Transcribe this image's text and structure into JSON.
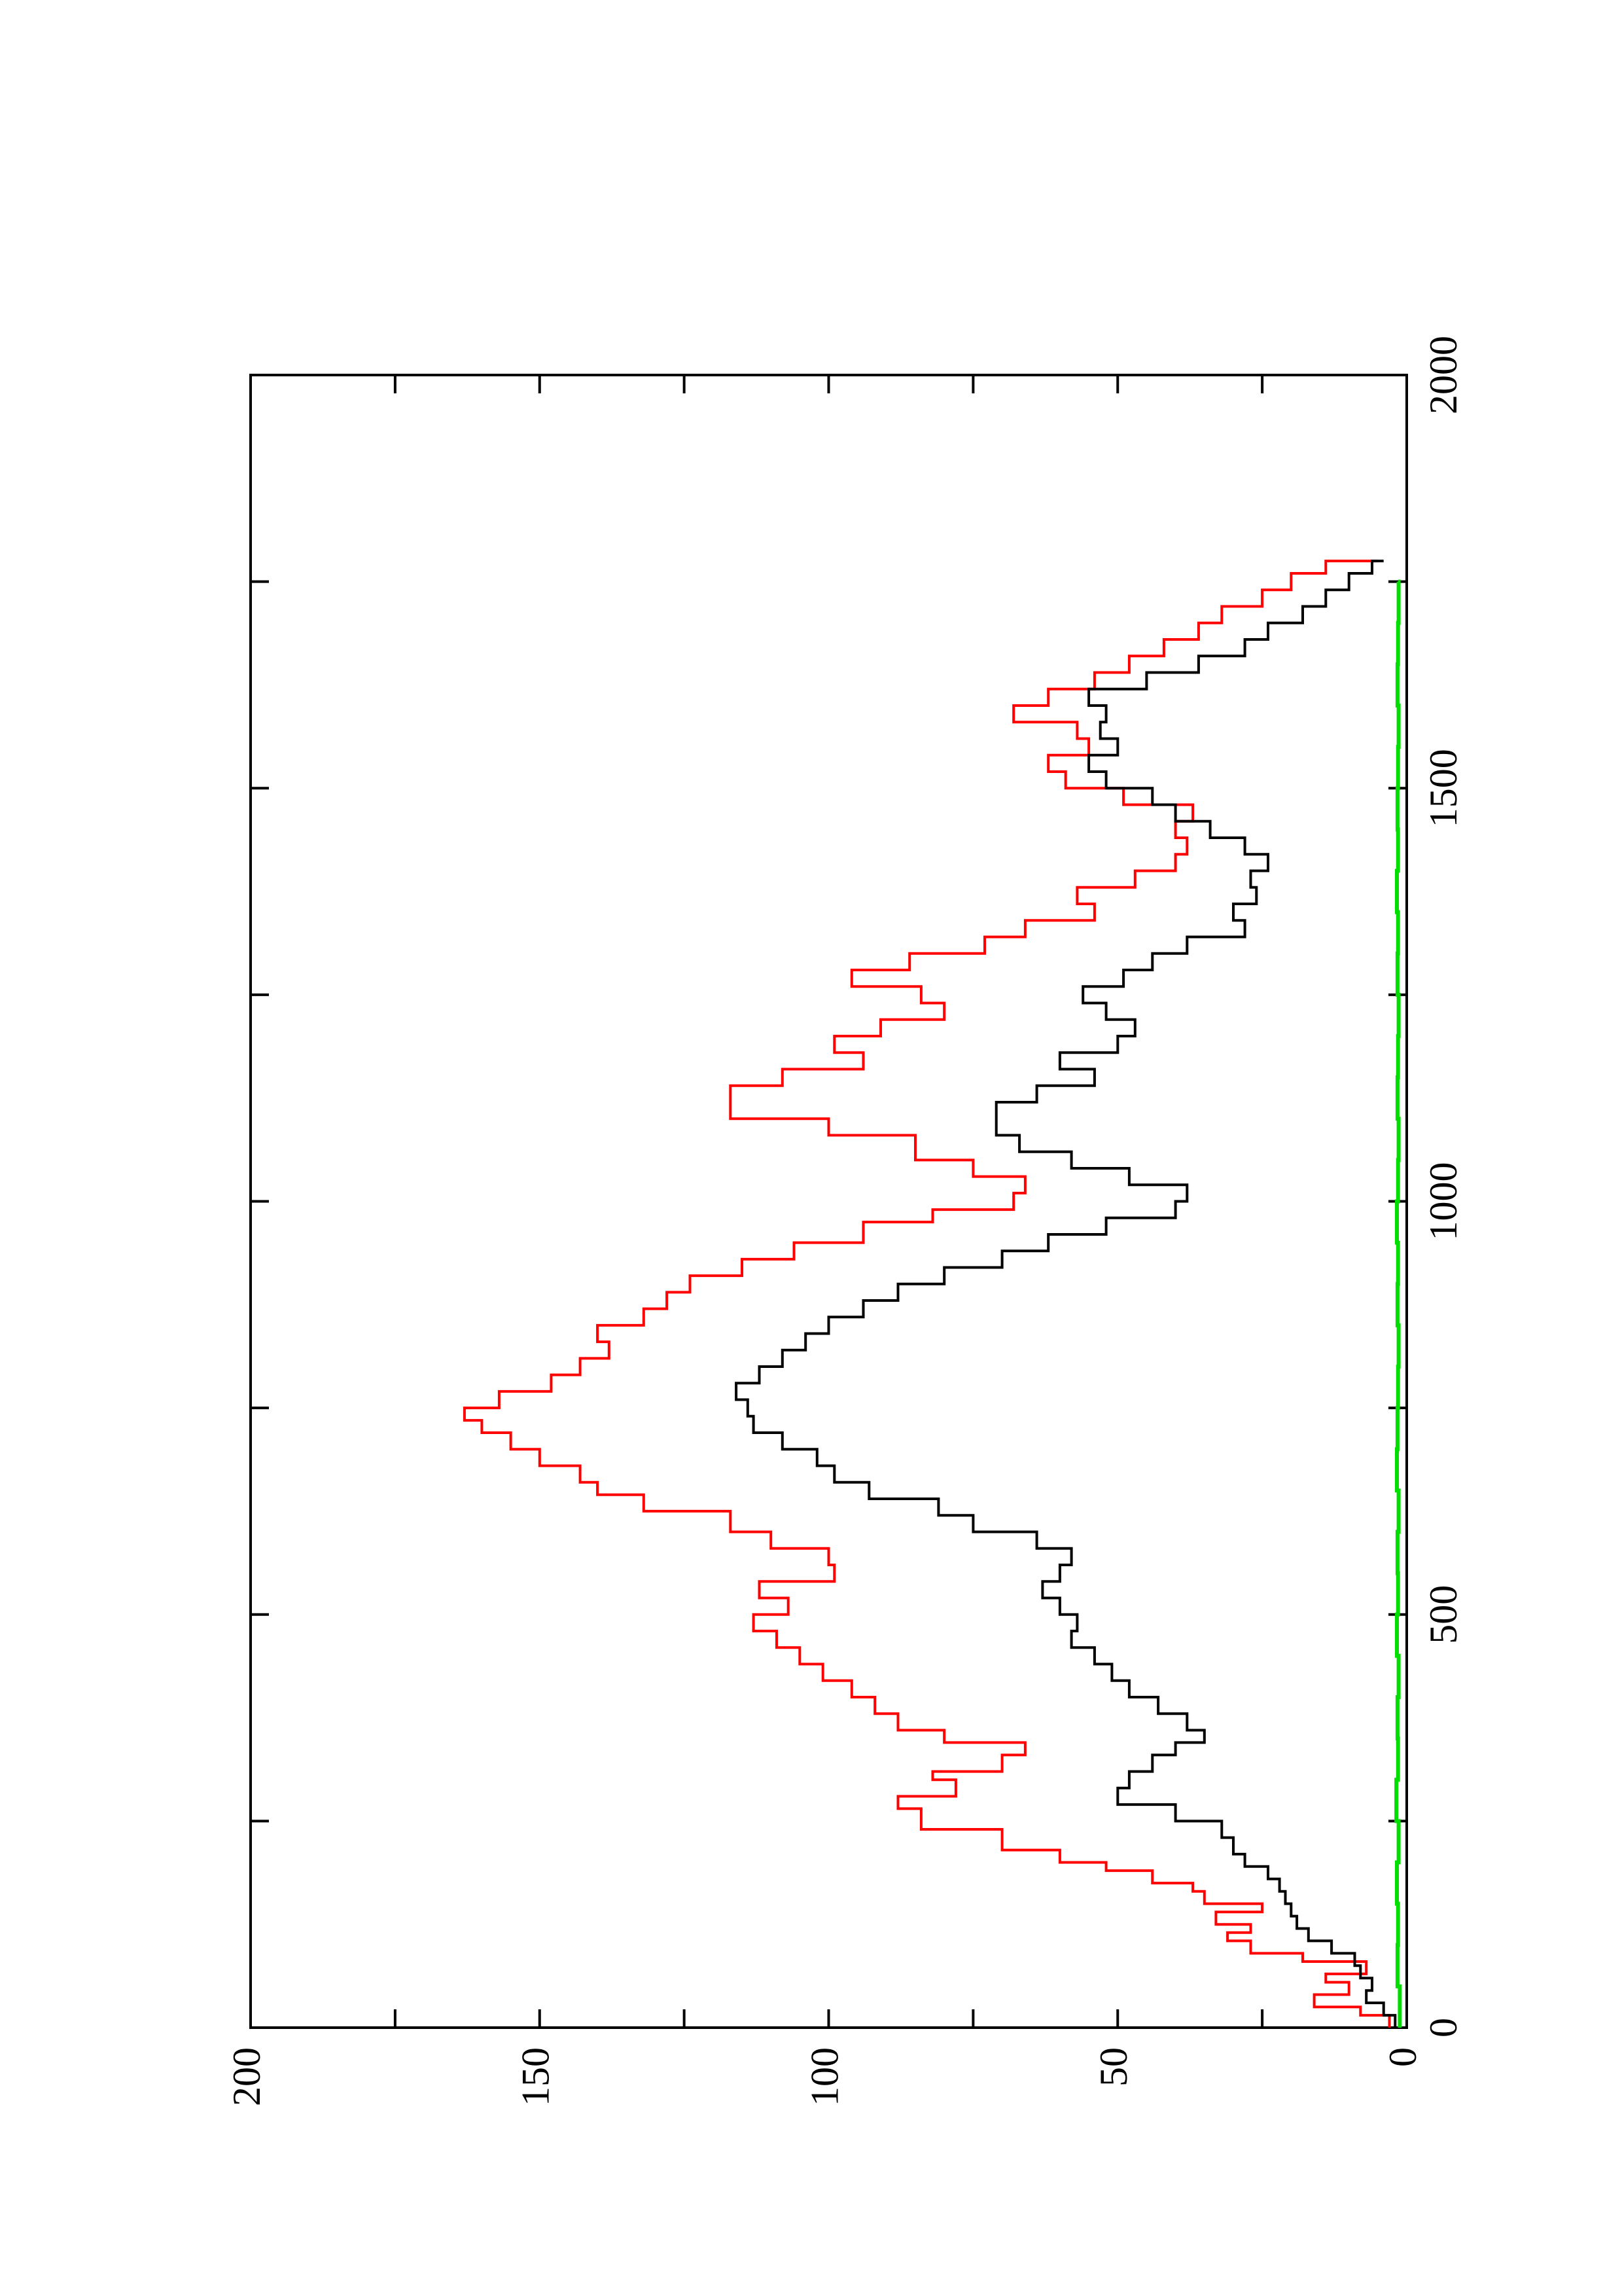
{
  "chart_data": {
    "type": "line",
    "orientation": "rotated-90-ccw",
    "title": "",
    "xlabel": "",
    "ylabel": "",
    "xlim": [
      0,
      2000
    ],
    "ylim": [
      0,
      200
    ],
    "grid": false,
    "legend": "none",
    "x_ticks": [
      {
        "value": 0,
        "label": "0"
      },
      {
        "value": 500,
        "label": "500"
      },
      {
        "value": 1000,
        "label": "1000"
      },
      {
        "value": 1500,
        "label": "1500"
      },
      {
        "value": 2000,
        "label": "2000"
      }
    ],
    "x_minor_ticks": [
      250,
      750,
      1250,
      1750
    ],
    "y_ticks": [
      {
        "value": 0,
        "label": "0"
      },
      {
        "value": 50,
        "label": "50"
      },
      {
        "value": 100,
        "label": "100"
      },
      {
        "value": 150,
        "label": "150"
      },
      {
        "value": 200,
        "label": "200"
      }
    ],
    "y_minor_ticks": [
      25,
      75,
      125,
      175
    ],
    "series": [
      {
        "color": "#ff0000",
        "x": [
          0,
          15,
          25,
          40,
          55,
          65,
          80,
          90,
          105,
          115,
          125,
          140,
          150,
          165,
          175,
          190,
          200,
          215,
          240,
          265,
          280,
          300,
          310,
          330,
          345,
          360,
          380,
          400,
          420,
          440,
          460,
          480,
          500,
          520,
          540,
          560,
          580,
          600,
          625,
          645,
          660,
          680,
          700,
          720,
          735,
          750,
          770,
          790,
          810,
          830,
          850,
          870,
          890,
          910,
          930,
          950,
          975,
          990,
          1010,
          1030,
          1050,
          1080,
          1100,
          1120,
          1140,
          1160,
          1180,
          1200,
          1220,
          1240,
          1260,
          1280,
          1300,
          1320,
          1340,
          1360,
          1380,
          1400,
          1420,
          1440,
          1460,
          1480,
          1500,
          1520,
          1540,
          1560,
          1580,
          1600,
          1620,
          1640,
          1660,
          1680,
          1700,
          1720,
          1740,
          1760,
          1775
        ],
        "values": [
          3,
          8,
          16,
          10,
          14,
          7,
          18,
          27,
          31,
          27,
          33,
          25,
          35,
          37,
          44,
          52,
          60,
          70,
          84,
          88,
          78,
          82,
          70,
          66,
          80,
          88,
          92,
          96,
          101,
          105,
          109,
          113,
          107,
          112,
          99,
          100,
          110,
          117,
          132,
          140,
          143,
          150,
          155,
          160,
          163,
          157,
          148,
          143,
          138,
          140,
          132,
          128,
          124,
          115,
          106,
          94,
          82,
          68,
          66,
          75,
          85,
          100,
          117,
          117,
          108,
          94,
          99,
          91,
          80,
          84,
          96,
          86,
          73,
          66,
          54,
          57,
          47,
          40,
          38,
          40,
          37,
          49,
          59,
          62,
          55,
          57,
          68,
          62,
          54,
          48,
          42,
          36,
          32,
          25,
          20,
          14,
          5
        ]
      },
      {
        "color": "#000000",
        "x": [
          0,
          15,
          30,
          45,
          60,
          75,
          90,
          105,
          120,
          135,
          150,
          165,
          180,
          195,
          210,
          230,
          250,
          270,
          290,
          310,
          330,
          345,
          360,
          380,
          400,
          420,
          440,
          460,
          480,
          500,
          520,
          540,
          560,
          580,
          600,
          620,
          640,
          660,
          680,
          700,
          720,
          740,
          760,
          780,
          800,
          820,
          840,
          860,
          880,
          900,
          920,
          940,
          960,
          980,
          1000,
          1020,
          1040,
          1060,
          1080,
          1100,
          1120,
          1140,
          1160,
          1180,
          1200,
          1220,
          1240,
          1260,
          1280,
          1300,
          1320,
          1340,
          1360,
          1380,
          1400,
          1420,
          1440,
          1460,
          1480,
          1500,
          1520,
          1540,
          1560,
          1580,
          1600,
          1620,
          1640,
          1660,
          1680,
          1700,
          1720,
          1740,
          1760,
          1775
        ],
        "values": [
          2,
          4,
          7,
          6,
          8,
          9,
          13,
          17,
          19,
          20,
          21,
          22,
          24,
          28,
          30,
          32,
          40,
          50,
          48,
          44,
          40,
          35,
          38,
          43,
          48,
          51,
          54,
          58,
          57,
          60,
          63,
          60,
          58,
          64,
          75,
          81,
          93,
          99,
          102,
          108,
          113,
          114,
          116,
          112,
          108,
          104,
          100,
          94,
          88,
          80,
          70,
          62,
          52,
          40,
          38,
          48,
          58,
          67,
          71,
          71,
          64,
          54,
          60,
          50,
          47,
          52,
          56,
          49,
          44,
          38,
          28,
          30,
          26,
          27,
          24,
          28,
          34,
          40,
          44,
          52,
          55,
          50,
          53,
          52,
          55,
          45,
          36,
          28,
          24,
          18,
          14,
          10,
          6,
          4
        ]
      },
      {
        "color": "#00dd00",
        "x": [
          0,
          50,
          100,
          150,
          200,
          250,
          300,
          350,
          400,
          450,
          500,
          550,
          600,
          650,
          700,
          750,
          800,
          850,
          900,
          950,
          1000,
          1050,
          1100,
          1150,
          1200,
          1250,
          1300,
          1350,
          1400,
          1450,
          1500,
          1550,
          1600,
          1650,
          1700,
          1750
        ],
        "values": [
          1.2,
          1.6,
          1.5,
          1.7,
          1.4,
          1.8,
          1.5,
          1.6,
          1.4,
          1.7,
          1.5,
          1.6,
          1.4,
          1.7,
          1.6,
          1.5,
          1.4,
          1.6,
          1.5,
          1.7,
          1.5,
          1.4,
          1.6,
          1.5,
          1.4,
          1.6,
          1.5,
          1.7,
          1.5,
          1.6,
          1.5,
          1.4,
          1.6,
          1.5,
          1.4,
          1.5
        ]
      }
    ]
  }
}
